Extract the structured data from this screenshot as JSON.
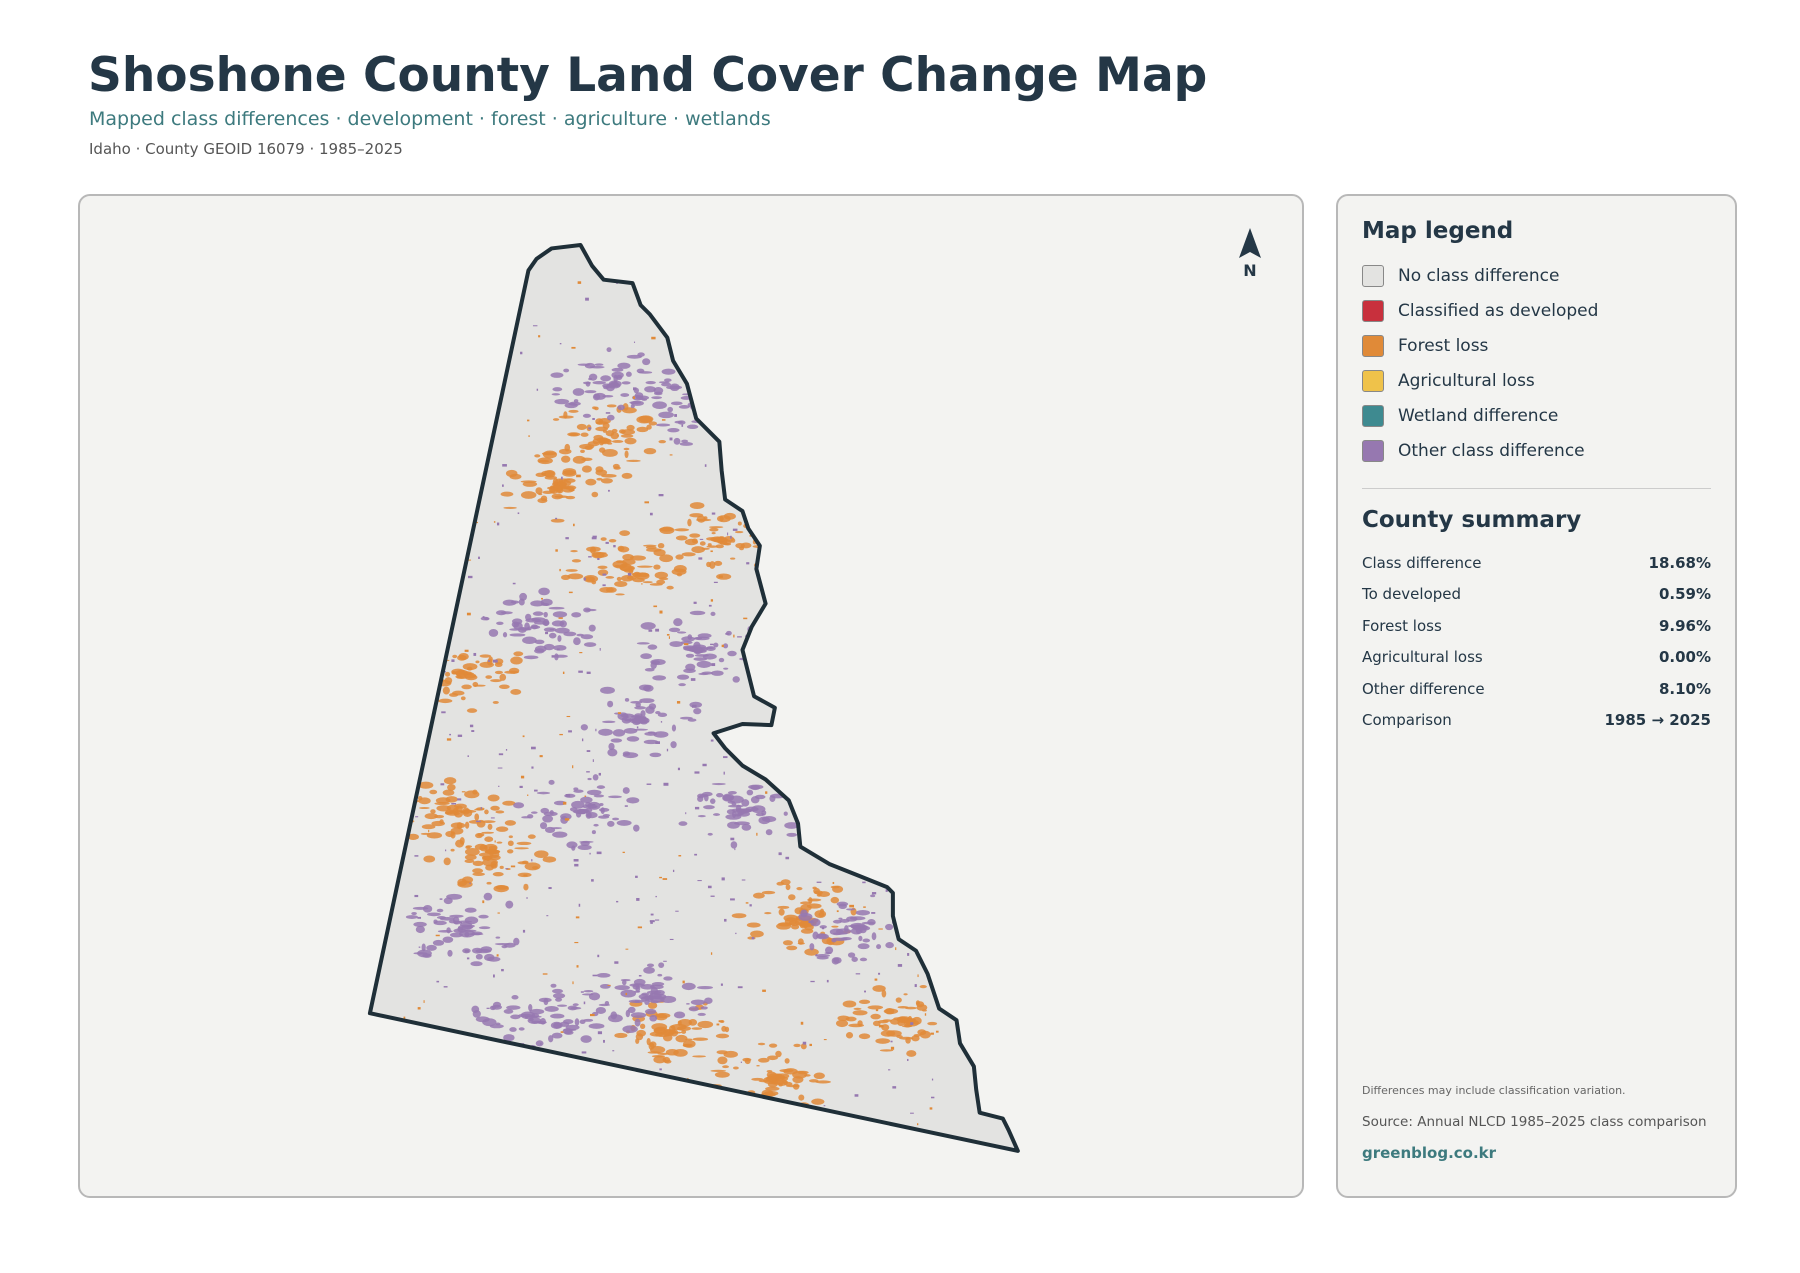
{
  "header": {
    "title": "Shoshone County Land Cover Change Map",
    "subtitle": "Mapped class differences · development · forest · agriculture · wetlands",
    "meta": "Idaho · County GEOID 16079 · 1985–2025"
  },
  "map": {
    "north_label": "N"
  },
  "legend": {
    "title": "Map legend",
    "items": [
      {
        "label": "No class difference",
        "color": "#e3e3e1"
      },
      {
        "label": "Classified as developed",
        "color": "#c8303d"
      },
      {
        "label": "Forest loss",
        "color": "#e08a38"
      },
      {
        "label": "Agricultural loss",
        "color": "#efc24a"
      },
      {
        "label": "Wetland difference",
        "color": "#3e8a90"
      },
      {
        "label": "Other class difference",
        "color": "#9678b0"
      }
    ]
  },
  "summary": {
    "title": "County summary",
    "rows": [
      {
        "label": "Class difference",
        "value": "18.68%"
      },
      {
        "label": "To developed",
        "value": "0.59%"
      },
      {
        "label": "Forest loss",
        "value": "9.96%"
      },
      {
        "label": "Agricultural loss",
        "value": "0.00%"
      },
      {
        "label": "Other difference",
        "value": "8.10%"
      },
      {
        "label": "Comparison",
        "value": "1985 → 2025"
      }
    ]
  },
  "footer": {
    "note": "Differences may include classification variation.",
    "source": "Source: Annual NLCD 1985–2025 class comparison",
    "credit": "greenblog.co.kr"
  }
}
